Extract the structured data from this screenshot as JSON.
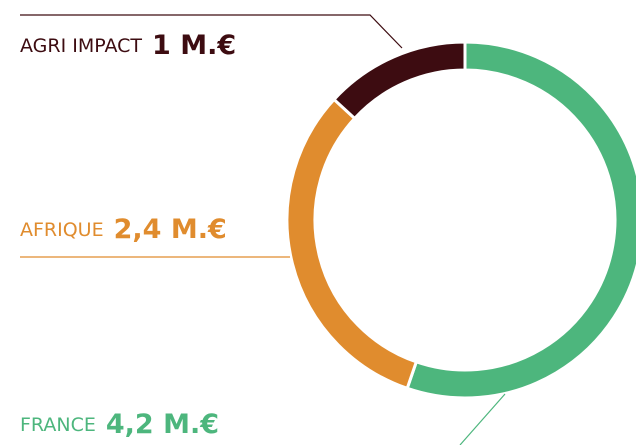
{
  "chart_data": {
    "type": "pie",
    "donut": true,
    "categories": [
      "FRANCE",
      "AFRIQUE",
      "AGRI IMPACT"
    ],
    "values": [
      4.2,
      2.4,
      1
    ],
    "value_labels": [
      "4,2 M.€",
      "2,4 M.€",
      "1 M.€"
    ],
    "colors": [
      "#4db67d",
      "#e08c2e",
      "#3d0c11"
    ]
  }
}
